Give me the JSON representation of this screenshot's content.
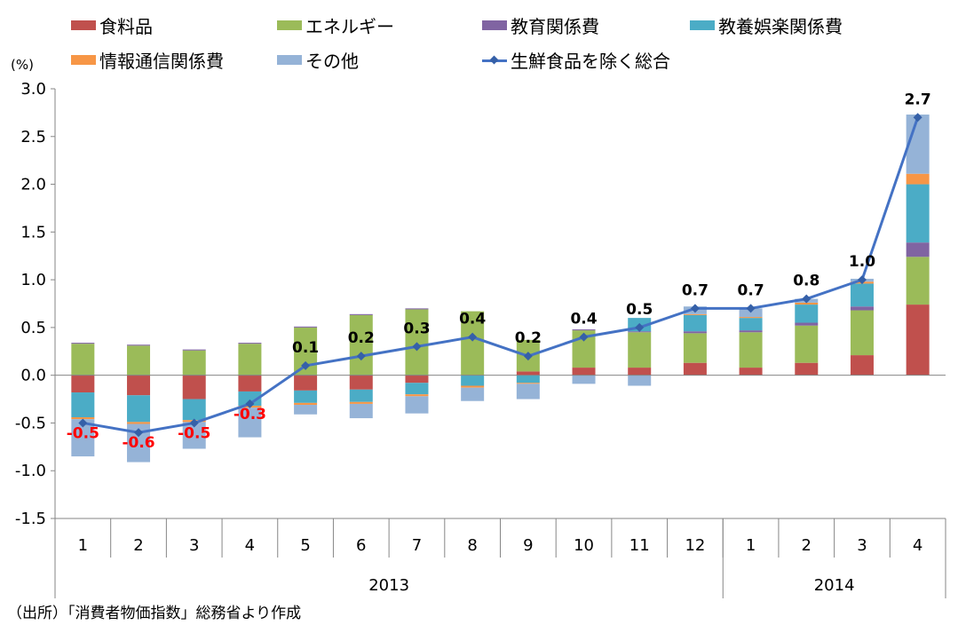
{
  "legend": {
    "food": "食料品",
    "energy": "エネルギー",
    "education": "教育関係費",
    "recreation": "教養娯楽関係費",
    "info": "情報通信関係費",
    "other": "その他",
    "core": "生鮮食品を除く総合"
  },
  "unit_label": "(%)",
  "source_note": "（出所）「消費者物価指数」総務省より作成",
  "colors": {
    "food": "#C0504D",
    "energy": "#9BBB59",
    "education": "#8064A2",
    "recreation": "#4BACC6",
    "info": "#F79646",
    "other": "#95B3D7",
    "core_line": "#4472C4",
    "negative_label": "#FF0000"
  },
  "chart_data": {
    "type": "bar",
    "stacked": true,
    "categories": [
      "1",
      "2",
      "3",
      "4",
      "5",
      "6",
      "7",
      "8",
      "9",
      "10",
      "11",
      "12",
      "1",
      "2",
      "3",
      "4"
    ],
    "year_groups": [
      {
        "label": "2013",
        "count": 12
      },
      {
        "label": "2014",
        "count": 4
      }
    ],
    "ylim": [
      -1.5,
      3.0
    ],
    "yticks": [
      "3.0",
      "2.5",
      "2.0",
      "1.5",
      "1.0",
      "0.5",
      "0.0",
      "-0.5",
      "-1.0",
      "-1.5"
    ],
    "ylabel": "(%)",
    "grid": false,
    "legend_position": "top",
    "series": [
      {
        "key": "food",
        "name": "食料品",
        "type": "bar",
        "values": [
          -0.18,
          -0.21,
          -0.25,
          -0.17,
          -0.16,
          -0.15,
          -0.08,
          0.0,
          0.04,
          0.08,
          0.08,
          0.13,
          0.08,
          0.13,
          0.21,
          0.74
        ]
      },
      {
        "key": "energy",
        "name": "エネルギー",
        "type": "bar",
        "values": [
          0.33,
          0.31,
          0.26,
          0.33,
          0.5,
          0.63,
          0.69,
          0.67,
          0.33,
          0.39,
          0.37,
          0.31,
          0.37,
          0.39,
          0.47,
          0.5
        ]
      },
      {
        "key": "education",
        "name": "教育関係費",
        "type": "bar",
        "values": [
          0.01,
          0.01,
          0.01,
          0.01,
          0.01,
          0.01,
          0.01,
          0.0,
          0.0,
          0.01,
          0.01,
          0.02,
          0.02,
          0.03,
          0.04,
          0.15
        ]
      },
      {
        "key": "recreation",
        "name": "教養娯楽関係費",
        "type": "bar",
        "values": [
          -0.26,
          -0.28,
          -0.22,
          -0.15,
          -0.13,
          -0.13,
          -0.12,
          -0.11,
          -0.08,
          0.0,
          0.14,
          0.17,
          0.13,
          0.19,
          0.24,
          0.61
        ]
      },
      {
        "key": "info",
        "name": "情報通信関係費",
        "type": "bar",
        "values": [
          -0.02,
          -0.02,
          -0.02,
          -0.02,
          -0.02,
          -0.02,
          -0.02,
          -0.02,
          -0.01,
          0.0,
          0.0,
          0.01,
          0.01,
          0.02,
          0.02,
          0.11
        ]
      },
      {
        "key": "other",
        "name": "その他",
        "type": "bar",
        "values": [
          -0.39,
          -0.4,
          -0.28,
          -0.31,
          -0.1,
          -0.15,
          -0.18,
          -0.14,
          -0.16,
          -0.09,
          -0.11,
          0.08,
          0.09,
          0.04,
          0.03,
          0.62
        ]
      },
      {
        "key": "core",
        "name": "生鮮食品を除く総合",
        "type": "line",
        "values": [
          -0.5,
          -0.6,
          -0.5,
          -0.3,
          0.1,
          0.2,
          0.3,
          0.4,
          0.2,
          0.4,
          0.5,
          0.7,
          0.7,
          0.8,
          1.0,
          2.7
        ]
      }
    ],
    "data_labels": [
      "-0.5",
      "-0.6",
      "-0.5",
      "-0.3",
      "0.1",
      "0.2",
      "0.3",
      "0.4",
      "0.2",
      "0.4",
      "0.5",
      "0.7",
      "0.7",
      "0.8",
      "1.0",
      "2.7"
    ]
  }
}
